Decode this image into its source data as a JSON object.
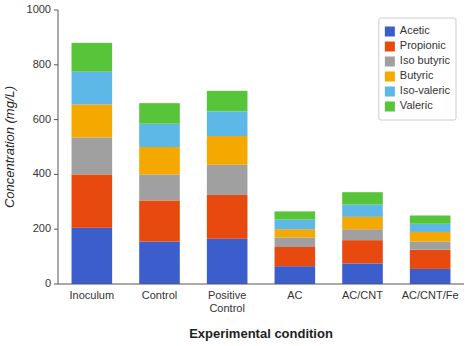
{
  "chart_data": {
    "type": "bar",
    "stacked": true,
    "xlabel": "Experimental condition",
    "ylabel": "Concentration (mg/L)",
    "categories": [
      "Inoculum",
      "Control",
      "Positive\nControl",
      "AC",
      "AC/CNT",
      "AC/CNT/Fe"
    ],
    "series": [
      {
        "name": "Acetic",
        "color": "#3B5ECC",
        "values": [
          205,
          155,
          165,
          65,
          75,
          55
        ]
      },
      {
        "name": "Propionic",
        "color": "#E8490F",
        "values": [
          195,
          150,
          160,
          70,
          85,
          70
        ]
      },
      {
        "name": "Iso butyric",
        "color": "#A0A0A0",
        "values": [
          135,
          95,
          110,
          35,
          40,
          30
        ]
      },
      {
        "name": "Butyric",
        "color": "#F5A800",
        "values": [
          120,
          100,
          105,
          30,
          45,
          35
        ]
      },
      {
        "name": "Iso-valeric",
        "color": "#5DB8E8",
        "values": [
          120,
          85,
          90,
          35,
          45,
          30
        ]
      },
      {
        "name": "Valeric",
        "color": "#57C43A",
        "values": [
          105,
          75,
          75,
          30,
          45,
          30
        ]
      }
    ],
    "ylim": [
      0,
      1000
    ],
    "yticks": [
      0,
      200,
      400,
      600,
      800,
      1000
    ],
    "legend": "upper right"
  }
}
